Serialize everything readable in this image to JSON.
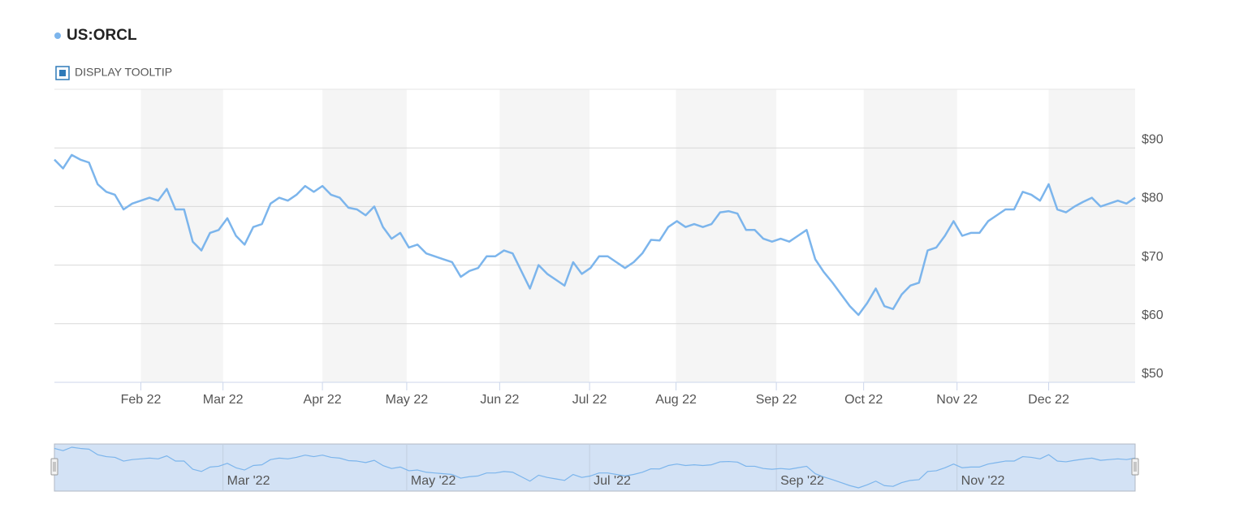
{
  "header": {
    "tooltip_toggle": "DISPLAY TOOLTIP"
  },
  "chart_data": {
    "type": "line",
    "series": [
      {
        "name": "US:ORCL",
        "color": "#7cb5ec",
        "values": [
          88,
          86.5,
          88.8,
          88,
          87.5,
          83.8,
          82.5,
          82,
          79.5,
          80.5,
          81,
          81.5,
          81,
          83,
          79.5,
          79.5,
          74,
          72.5,
          75.5,
          76,
          78,
          75,
          73.5,
          76.5,
          77,
          80.5,
          81.5,
          81,
          82,
          83.5,
          82.5,
          83.5,
          82,
          81.5,
          79.8,
          79.5,
          78.5,
          80,
          76.5,
          74.5,
          75.5,
          73,
          73.5,
          72,
          71.5,
          71,
          70.5,
          68,
          69,
          69.5,
          71.5,
          71.5,
          72.5,
          72,
          69,
          66,
          70,
          68.5,
          67.5,
          66.5,
          70.5,
          68.5,
          69.5,
          71.5,
          71.5,
          70.5,
          69.5,
          70.5,
          72,
          74.3,
          74.2,
          76.5,
          77.5,
          76.5,
          77,
          76.5,
          77,
          79,
          79.2,
          78.8,
          76,
          76,
          74.5,
          74,
          74.5,
          74,
          75,
          76,
          71,
          68.8,
          67,
          65,
          63,
          61.5,
          63.5,
          66,
          63,
          62.5,
          65,
          66.5,
          67,
          72.5,
          73,
          75,
          77.5,
          75,
          75.5,
          75.5,
          77.5,
          78.5,
          79.5,
          79.5,
          82.5,
          82,
          81,
          83.8,
          79.5,
          79,
          80,
          80.8,
          81.5,
          80,
          80.5,
          81,
          80.5,
          81.5
        ]
      }
    ],
    "xlim": [
      0,
      125
    ],
    "xticks": [
      {
        "value": 10,
        "label": "Feb 22"
      },
      {
        "value": 19.5,
        "label": "Mar 22"
      },
      {
        "value": 31,
        "label": "Apr 22"
      },
      {
        "value": 40.75,
        "label": "May 22"
      },
      {
        "value": 51.5,
        "label": "Jun 22"
      },
      {
        "value": 61.9,
        "label": "Jul 22"
      },
      {
        "value": 71.9,
        "label": "Aug 22"
      },
      {
        "value": 83.5,
        "label": "Sep 22"
      },
      {
        "value": 93.6,
        "label": "Oct 22"
      },
      {
        "value": 104.4,
        "label": "Nov 22"
      },
      {
        "value": 115,
        "label": "Dec 22"
      }
    ],
    "ylim": [
      50,
      100
    ],
    "yticks": [
      {
        "value": 50,
        "label": "$50"
      },
      {
        "value": 60,
        "label": "$60"
      },
      {
        "value": 70,
        "label": "$70"
      },
      {
        "value": 80,
        "label": "$80"
      },
      {
        "value": 90,
        "label": "$90"
      }
    ],
    "grid": true,
    "navigator": {
      "xticks": [
        {
          "value": 19.5,
          "label": "Mar '22"
        },
        {
          "value": 40.75,
          "label": "May '22"
        },
        {
          "value": 61.9,
          "label": "Jul '22"
        },
        {
          "value": 83.5,
          "label": "Sep '22"
        },
        {
          "value": 104.4,
          "label": "Nov '22"
        }
      ]
    }
  }
}
